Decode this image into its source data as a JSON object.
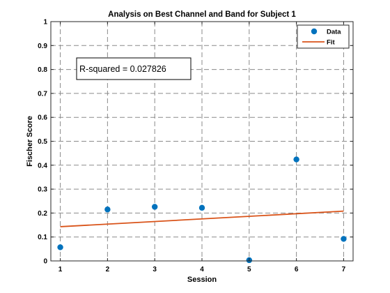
{
  "chart_data": {
    "type": "scatter",
    "title": "Analysis on Best Channel and Band for Subject 1",
    "xlabel": "Session",
    "ylabel": "Fischer Score",
    "xlim": [
      0.8,
      7.2
    ],
    "ylim": [
      0,
      1
    ],
    "xticks": [
      1,
      2,
      3,
      4,
      5,
      6,
      7
    ],
    "xtick_labels": [
      "1",
      "2",
      "3",
      "4",
      "5",
      "6",
      "7"
    ],
    "yticks": [
      0,
      0.1,
      0.2,
      0.3,
      0.4,
      0.5,
      0.6,
      0.7,
      0.8,
      0.9,
      1
    ],
    "ytick_labels": [
      "0",
      "0.1",
      "0.2",
      "0.3",
      "0.4",
      "0.5",
      "0.6",
      "0.7",
      "0.8",
      "0.9",
      "1"
    ],
    "grid": true,
    "grid_style": "dashed",
    "legend_position": "top-right",
    "series": [
      {
        "name": "Data",
        "kind": "scatter",
        "color": "#0072BD",
        "x": [
          1,
          2,
          3,
          4,
          5,
          6,
          7
        ],
        "y": [
          0.057,
          0.215,
          0.226,
          0.222,
          0.003,
          0.424,
          0.092
        ]
      },
      {
        "name": "Fit",
        "kind": "line",
        "color": "#D95319",
        "x": [
          1,
          7
        ],
        "y": [
          0.143,
          0.208
        ]
      }
    ],
    "annotation": {
      "text": "R-squared = 0.027826"
    }
  }
}
